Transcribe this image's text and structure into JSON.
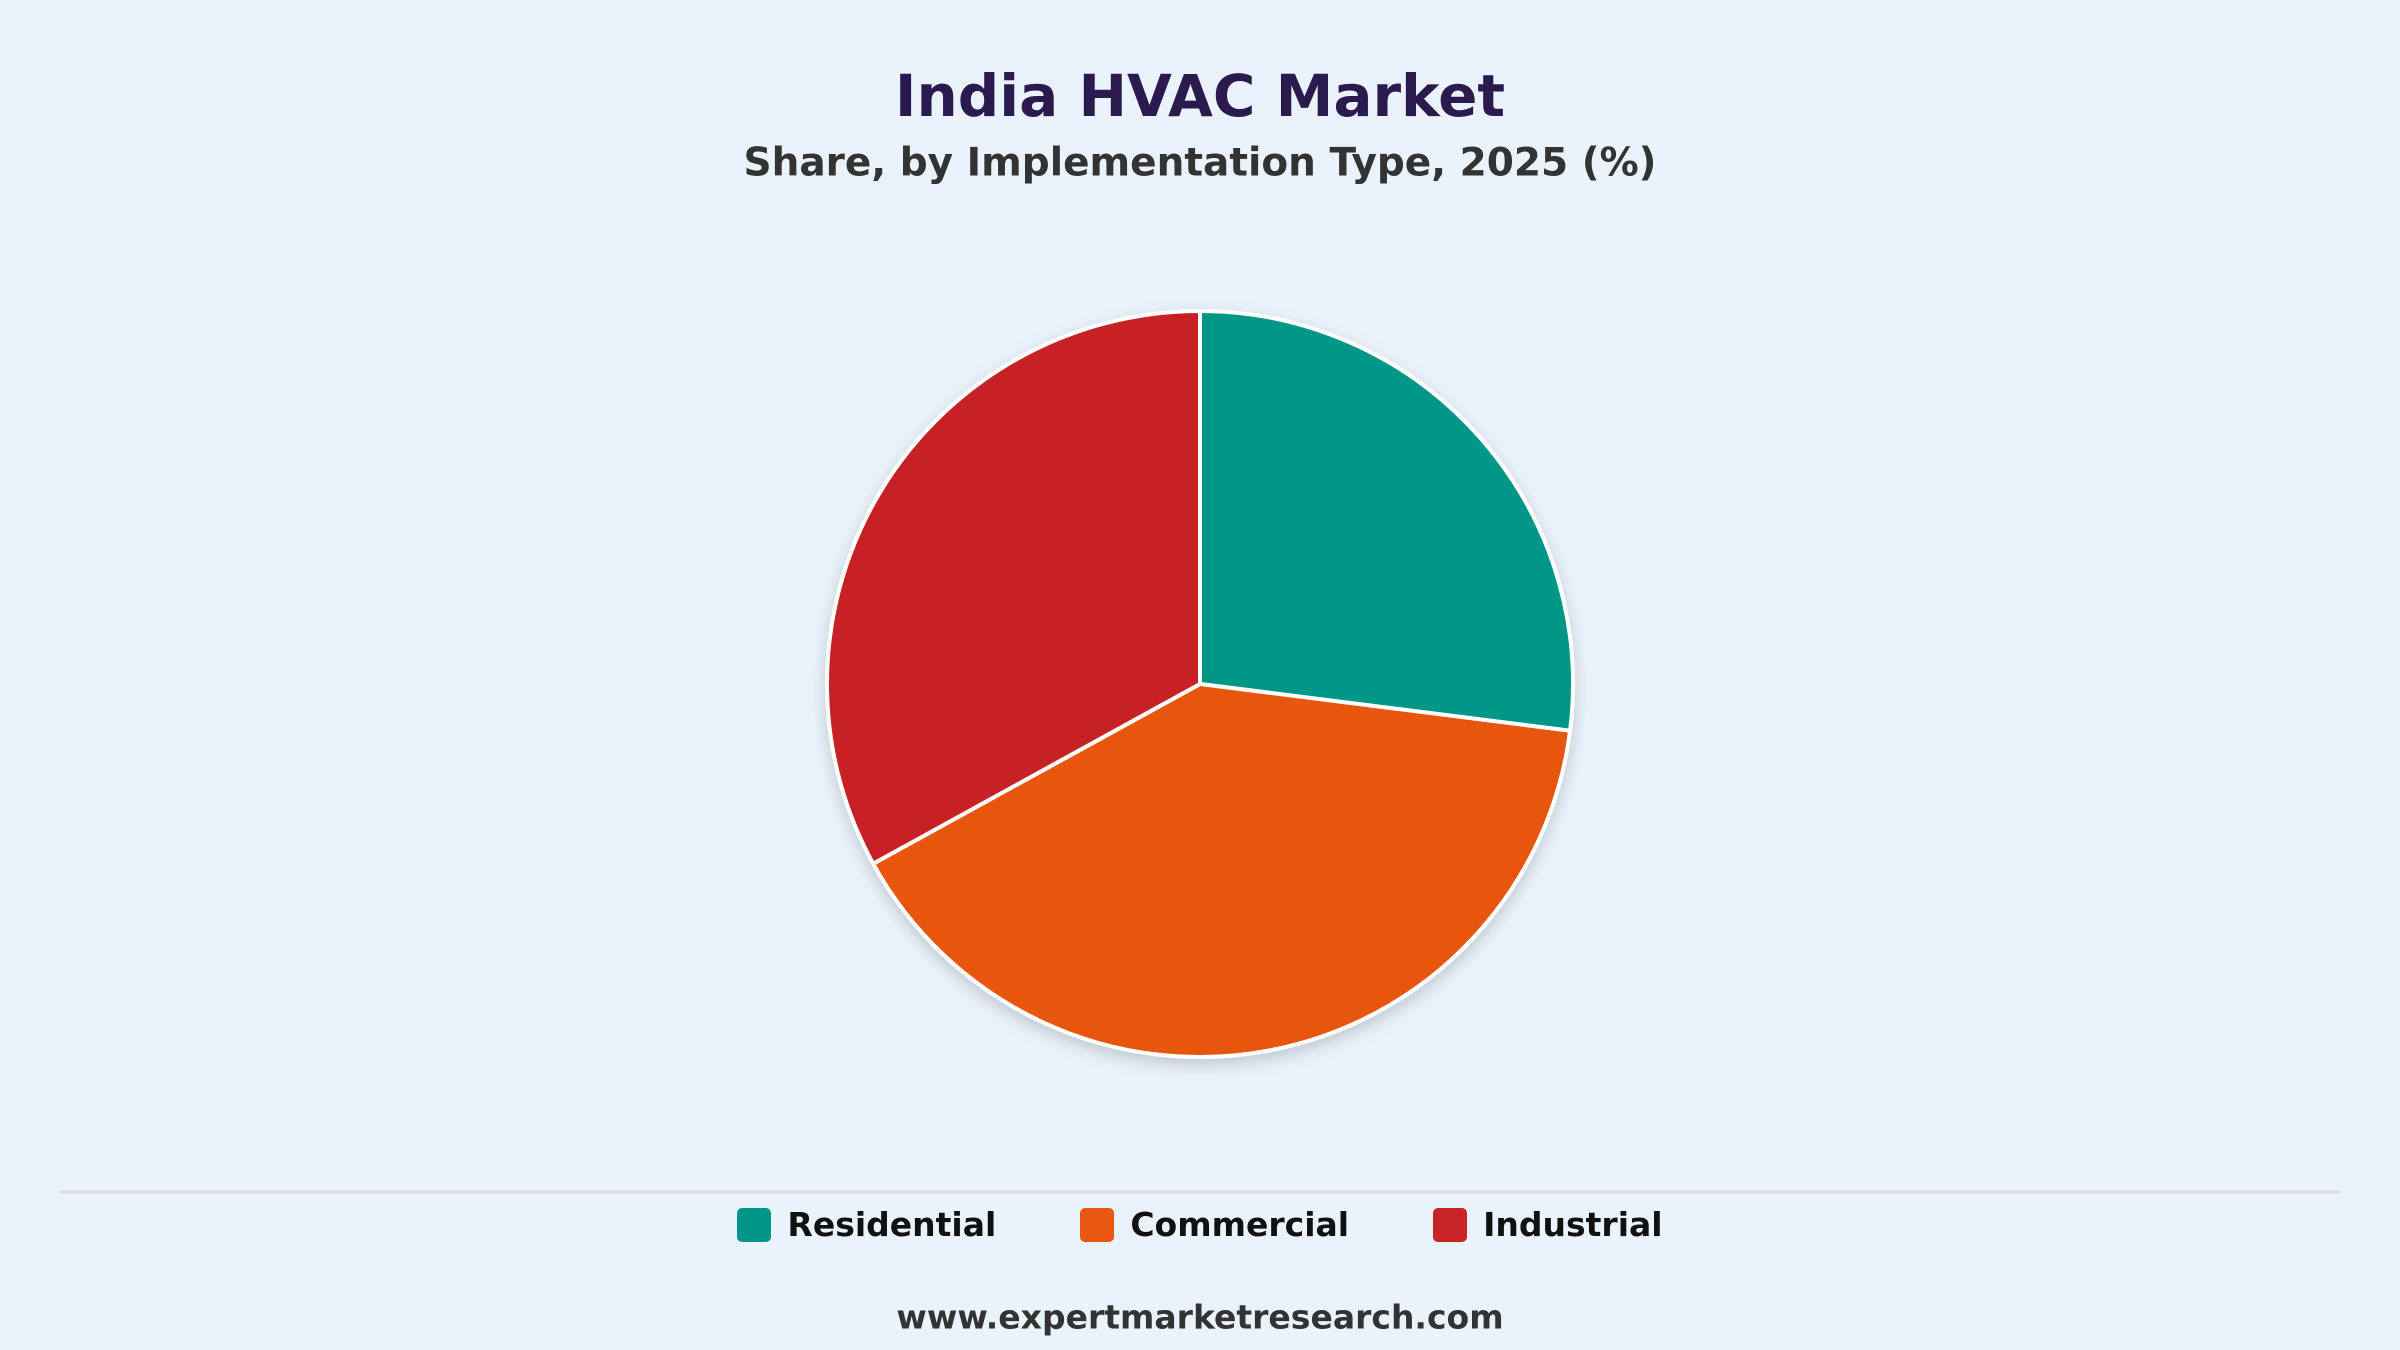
{
  "chart_data": {
    "type": "pie",
    "title": "India HVAC Market",
    "subtitle": "Share, by Implementation Type, 2025 (%)",
    "categories": [
      "Residential",
      "Commercial",
      "Industrial"
    ],
    "values": [
      27,
      40,
      33
    ],
    "colors": [
      "#009688",
      "#e8560f",
      "#c62426"
    ],
    "legend": "bottom",
    "source": "www.expertmarketresearch.com"
  }
}
